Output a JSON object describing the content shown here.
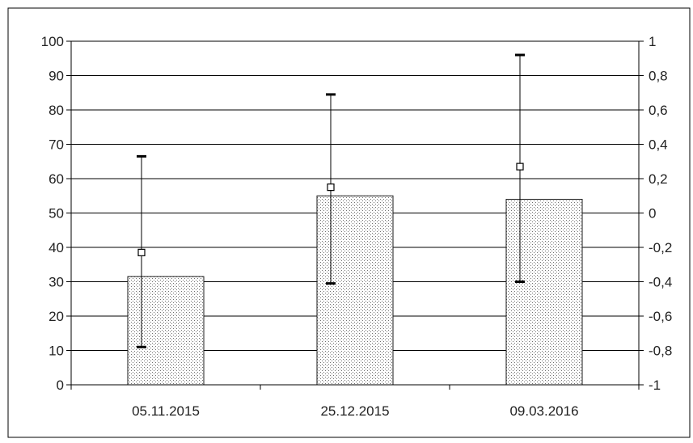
{
  "chart_data": {
    "type": "bar",
    "categories": [
      "05.11.2015",
      "25.12.2015",
      "09.03.2016"
    ],
    "bar_values": [
      31.5,
      55,
      54
    ],
    "ylim_left": [
      0,
      100
    ],
    "yticks_left": [
      "0",
      "10",
      "20",
      "30",
      "40",
      "50",
      "60",
      "70",
      "80",
      "90",
      "100"
    ],
    "ylim_right": [
      -1,
      1
    ],
    "yticks_right": [
      "-1",
      "-0,8",
      "-0,6",
      "-0,4",
      "-0,2",
      "0",
      "0,2",
      "0,4",
      "0,6",
      "0,8",
      "1"
    ],
    "points_right_axis": [
      -0.23,
      0.15,
      0.27
    ],
    "error_low_right_axis": [
      -0.78,
      -0.41,
      -0.4
    ],
    "error_high_right_axis": [
      0.33,
      0.69,
      0.92
    ],
    "grid": true,
    "legend": "none",
    "colors": {
      "bar_fill": "#ffffff",
      "bar_dot": "#6f6f6f",
      "bar_stroke": "#1a1a1a",
      "grid": "#000000",
      "axis": "#000000",
      "marker_fill": "#ffffff"
    }
  }
}
